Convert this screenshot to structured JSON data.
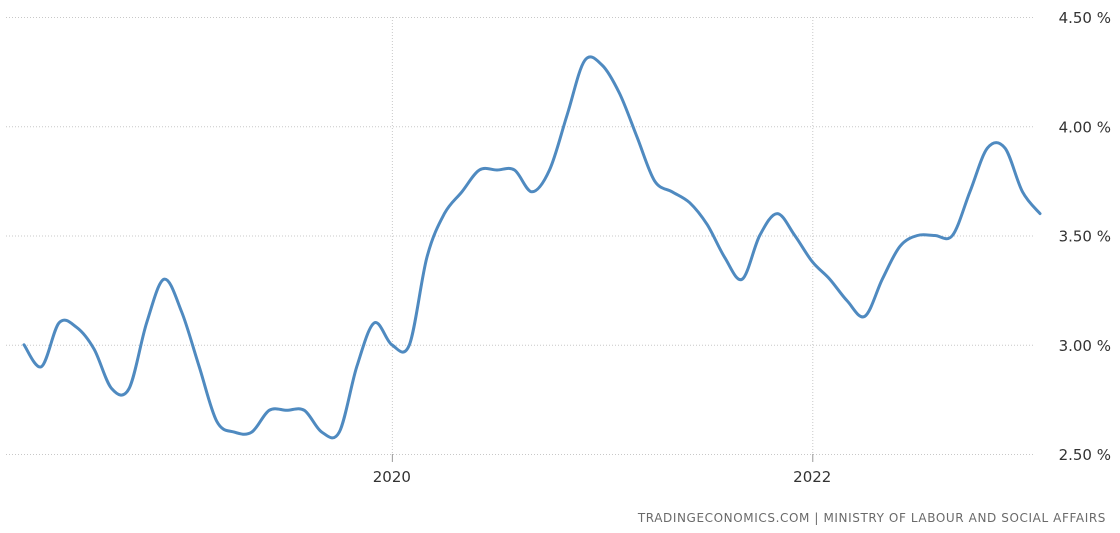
{
  "chart_data": {
    "type": "line",
    "x_axis": {
      "ticks": [
        {
          "label": "2020",
          "date": "2020-01"
        },
        {
          "label": "2022",
          "date": "2022-01"
        }
      ]
    },
    "y_axis": {
      "min": 2.5,
      "max": 4.5,
      "ticks": [
        "2.50 %",
        "3.00 %",
        "3.50 %",
        "4.00 %",
        "4.50 %"
      ],
      "tick_values": [
        2.5,
        3.0,
        3.5,
        4.0,
        4.5
      ]
    },
    "grid": {
      "horizontal": true,
      "vertical": true,
      "style": "dotted"
    },
    "series": [
      {
        "color": "#4f8ac0",
        "points": [
          [
            "2018-04",
            3.0
          ],
          [
            "2018-05",
            2.9
          ],
          [
            "2018-06",
            3.1
          ],
          [
            "2018-07",
            3.08
          ],
          [
            "2018-08",
            2.98
          ],
          [
            "2018-09",
            2.8
          ],
          [
            "2018-10",
            2.8
          ],
          [
            "2018-11",
            3.1
          ],
          [
            "2018-12",
            3.3
          ],
          [
            "2019-01",
            3.15
          ],
          [
            "2019-02",
            2.9
          ],
          [
            "2019-03",
            2.65
          ],
          [
            "2019-04",
            2.6
          ],
          [
            "2019-05",
            2.6
          ],
          [
            "2019-06",
            2.7
          ],
          [
            "2019-07",
            2.7
          ],
          [
            "2019-08",
            2.7
          ],
          [
            "2019-09",
            2.6
          ],
          [
            "2019-10",
            2.6
          ],
          [
            "2019-11",
            2.9
          ],
          [
            "2019-12",
            3.1
          ],
          [
            "2020-01",
            3.0
          ],
          [
            "2020-02",
            3.0
          ],
          [
            "2020-03",
            3.4
          ],
          [
            "2020-04",
            3.6
          ],
          [
            "2020-05",
            3.7
          ],
          [
            "2020-06",
            3.8
          ],
          [
            "2020-07",
            3.8
          ],
          [
            "2020-08",
            3.8
          ],
          [
            "2020-09",
            3.7
          ],
          [
            "2020-10",
            3.8
          ],
          [
            "2020-11",
            4.05
          ],
          [
            "2020-12",
            4.3
          ],
          [
            "2021-01",
            4.28
          ],
          [
            "2021-02",
            4.15
          ],
          [
            "2021-03",
            3.95
          ],
          [
            "2021-04",
            3.75
          ],
          [
            "2021-05",
            3.7
          ],
          [
            "2021-06",
            3.65
          ],
          [
            "2021-07",
            3.55
          ],
          [
            "2021-08",
            3.4
          ],
          [
            "2021-09",
            3.3
          ],
          [
            "2021-10",
            3.5
          ],
          [
            "2021-11",
            3.6
          ],
          [
            "2021-12",
            3.5
          ],
          [
            "2022-01",
            3.38
          ],
          [
            "2022-02",
            3.3
          ],
          [
            "2022-03",
            3.2
          ],
          [
            "2022-04",
            3.13
          ],
          [
            "2022-05",
            3.3
          ],
          [
            "2022-06",
            3.45
          ],
          [
            "2022-07",
            3.5
          ],
          [
            "2022-08",
            3.5
          ],
          [
            "2022-09",
            3.5
          ],
          [
            "2022-10",
            3.7
          ],
          [
            "2022-11",
            3.9
          ],
          [
            "2022-12",
            3.9
          ],
          [
            "2023-01",
            3.7
          ],
          [
            "2023-02",
            3.6
          ]
        ]
      }
    ]
  },
  "source": "TRADINGECONOMICS.COM  |  MINISTRY OF LABOUR AND SOCIAL AFFAIRS"
}
